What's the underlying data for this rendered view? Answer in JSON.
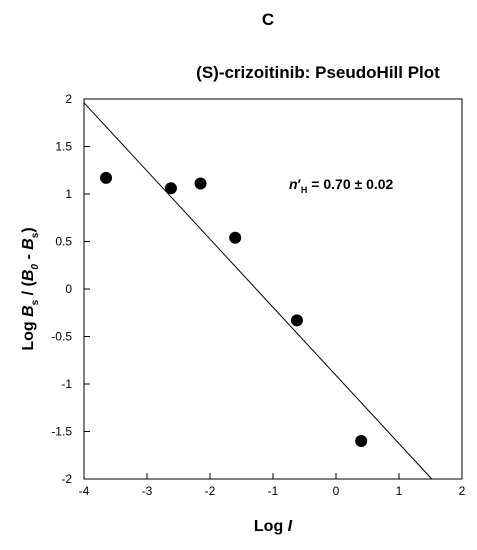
{
  "panel_letter": "C",
  "chart_data": {
    "type": "scatter",
    "title": "(S)-crizoitinib: PseudoHill Plot",
    "xlabel": {
      "prefix": "Log ",
      "italic": "I"
    },
    "ylabel": {
      "part1": "Log ",
      "b1": "B",
      "sub1": "s",
      "part2": " / (",
      "b2": "B",
      "sub2": "0",
      "part3": " - ",
      "b3": "B",
      "sub3": "s",
      "part4": ")"
    },
    "annotation": {
      "n": "n",
      "prime": "′",
      "sub": "H",
      "text": " = 0.70 ± 0.02"
    },
    "xlim": [
      -4,
      2
    ],
    "ylim": [
      -2,
      2
    ],
    "xticks": [
      "-4",
      "-3",
      "-2",
      "-1",
      "0",
      "1",
      "2"
    ],
    "yticks": [
      "-2",
      "-1.5",
      "-1",
      "-0.5",
      "0",
      "0.5",
      "1",
      "1.5",
      "2"
    ],
    "points": [
      {
        "x": -3.65,
        "y": 1.17
      },
      {
        "x": -2.62,
        "y": 1.06
      },
      {
        "x": -2.15,
        "y": 1.11
      },
      {
        "x": -1.6,
        "y": 0.54
      },
      {
        "x": -0.62,
        "y": -0.33
      },
      {
        "x": 0.4,
        "y": -1.6
      }
    ],
    "fit_line": {
      "x": [
        -4,
        1.52
      ],
      "y": [
        1.96,
        -2.0
      ]
    },
    "colors": {
      "marker": "#000000",
      "line": "#000000",
      "axes": "#000000"
    }
  }
}
